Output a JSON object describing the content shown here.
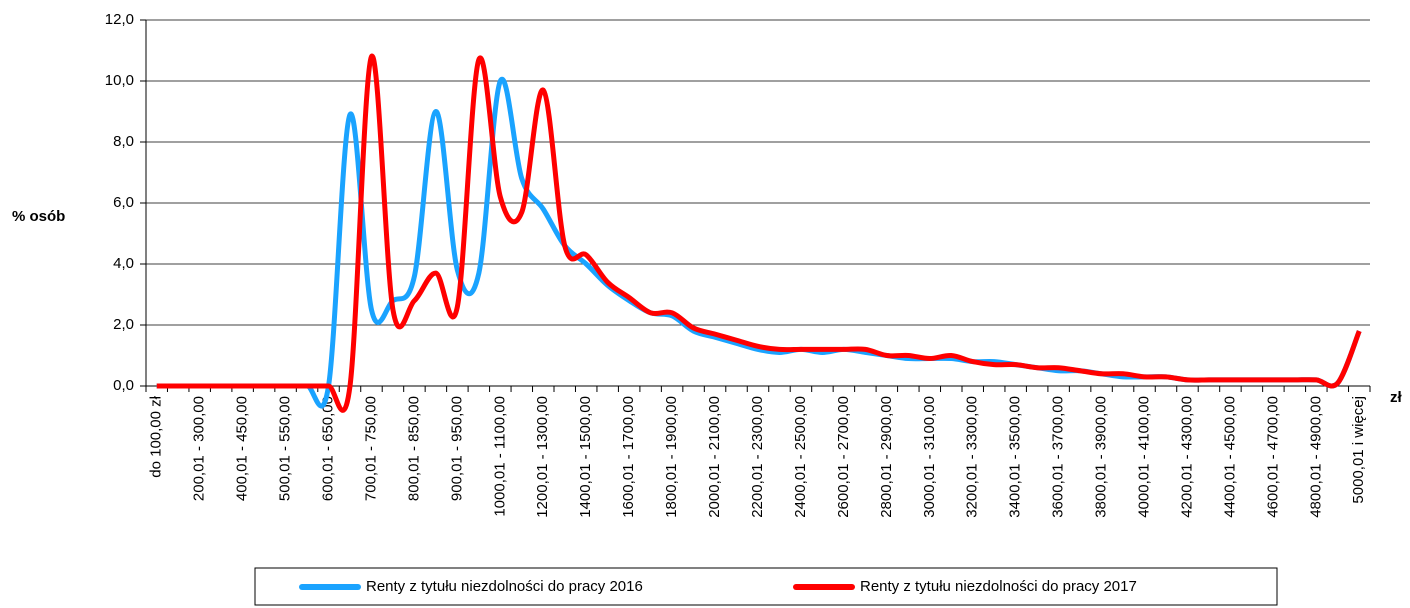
{
  "chart_data": {
    "type": "line",
    "y_label": "% osób",
    "x_label": "zł",
    "categories": [
      "do 100,00 zł",
      null,
      "200,01 - 300,00",
      null,
      "400,01 - 450,00",
      null,
      "500,01 - 550,00",
      null,
      "600,01 - 650,00",
      null,
      "700,01 - 750,00",
      null,
      "800,01 - 850,00",
      null,
      "900,01 - 950,00",
      null,
      "1000,01 - 1100,00",
      null,
      "1200,01 - 1300,00",
      null,
      "1400,01 - 1500,00",
      null,
      "1600,01 - 1700,00",
      null,
      "1800,01 - 1900,00",
      null,
      "2000,01 - 2100,00",
      null,
      "2200,01 - 2300,00",
      null,
      "2400,01 - 2500,00",
      null,
      "2600,01 - 2700,00",
      null,
      "2800,01 - 2900,00",
      null,
      "3000,01 - 3100,00",
      null,
      "3200,01 - 3300,00",
      null,
      "3400,01 - 3500,00",
      null,
      "3600,01 - 3700,00",
      null,
      "3800,01 - 3900,00",
      null,
      "4000,01 - 4100,00",
      null,
      "4200,01 - 4300,00",
      null,
      "4400,01 - 4500,00",
      null,
      "4600,01 - 4700,00",
      null,
      "4800,01 - 4900,00",
      null,
      "5000,01 i więcej"
    ],
    "series": [
      {
        "name": "Renty z tytułu niezdolności do pracy 2016",
        "color": "#1aa3ff",
        "values": [
          0,
          0,
          0,
          0,
          0,
          0,
          0,
          0,
          0,
          8.9,
          2.5,
          2.8,
          3.6,
          9.0,
          3.8,
          3.7,
          10.0,
          6.8,
          5.8,
          4.6,
          4.0,
          3.3,
          2.8,
          2.4,
          2.3,
          1.8,
          1.6,
          1.4,
          1.2,
          1.1,
          1.2,
          1.1,
          1.2,
          1.1,
          1.0,
          0.9,
          0.9,
          0.9,
          0.8,
          0.8,
          0.7,
          0.6,
          0.5,
          0.5,
          0.4,
          0.3,
          0.3,
          0.3,
          0.2,
          0.2,
          0.2,
          0.2,
          0.2,
          0.2,
          0.2,
          0.1,
          1.8
        ]
      },
      {
        "name": "Renty z tytułu niezdolności do pracy 2017",
        "color": "#ff0000",
        "values": [
          0,
          0,
          0,
          0,
          0,
          0,
          0,
          0,
          0,
          0,
          10.8,
          2.5,
          2.8,
          3.7,
          2.6,
          10.7,
          6.2,
          5.7,
          9.7,
          4.6,
          4.3,
          3.4,
          2.9,
          2.4,
          2.4,
          1.9,
          1.7,
          1.5,
          1.3,
          1.2,
          1.2,
          1.2,
          1.2,
          1.2,
          1.0,
          1.0,
          0.9,
          1.0,
          0.8,
          0.7,
          0.7,
          0.6,
          0.6,
          0.5,
          0.4,
          0.4,
          0.3,
          0.3,
          0.2,
          0.2,
          0.2,
          0.2,
          0.2,
          0.2,
          0.2,
          0.1,
          1.8
        ]
      }
    ],
    "ylim": [
      0,
      12
    ],
    "yticks": [
      {
        "value": 0,
        "label": "0,0"
      },
      {
        "value": 2,
        "label": "2,0"
      },
      {
        "value": 4,
        "label": "4,0"
      },
      {
        "value": 6,
        "label": "6,0"
      },
      {
        "value": 8,
        "label": "8,0"
      },
      {
        "value": 10,
        "label": "10,0"
      },
      {
        "value": 12,
        "label": "12,0"
      }
    ],
    "grid": true,
    "legend": "bottom"
  }
}
